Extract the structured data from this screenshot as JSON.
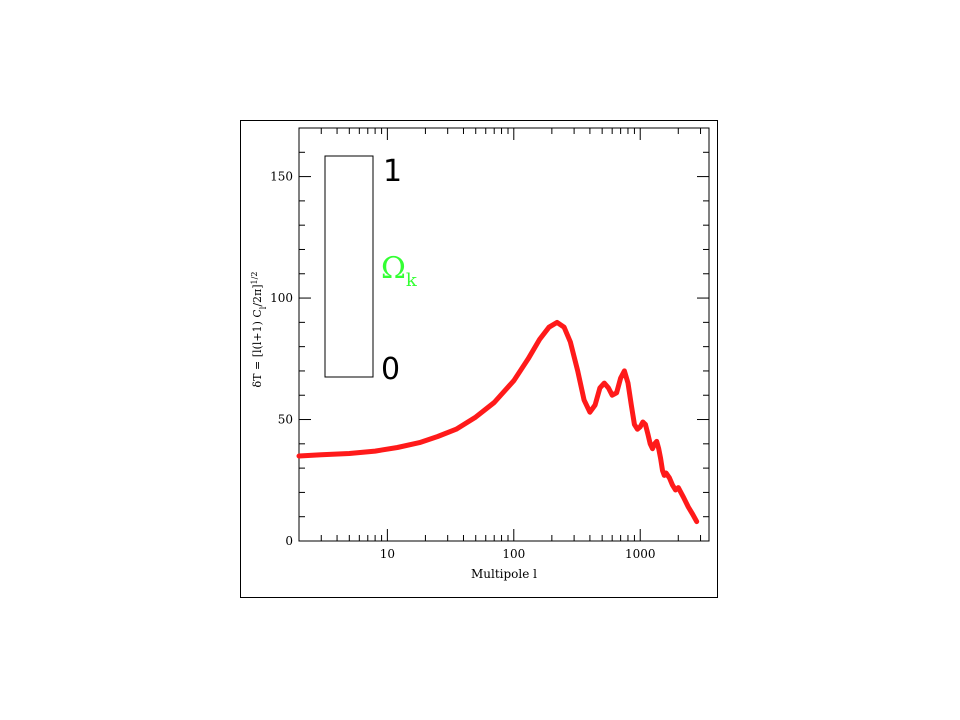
{
  "chart_data": {
    "type": "line",
    "title": "",
    "xlabel": "Multipole l",
    "ylabel": "δT = [l(l+1) C_l/2π]^1/2",
    "ylabel_parts": {
      "main": "δT = [l(l+1) C",
      "sub": "l",
      "mid": "/2π]",
      "sup": "1/2"
    },
    "xscale": "log",
    "xlim": [
      2,
      3500
    ],
    "ylim": [
      0,
      170
    ],
    "x_ticks": [
      10,
      100,
      1000
    ],
    "x_tick_labels": [
      "10",
      "100",
      "1000"
    ],
    "y_ticks": [
      0,
      50,
      100,
      150
    ],
    "y_tick_labels": [
      "0",
      "50",
      "100",
      "150"
    ],
    "line_color": "#ff1a1a",
    "series": [
      {
        "x": [
          2,
          3,
          5,
          8,
          12,
          18,
          25,
          35,
          50,
          70,
          100,
          130,
          160,
          190,
          220,
          250,
          280,
          320,
          360,
          400,
          440,
          480,
          520,
          560,
          600,
          650,
          700,
          750,
          800,
          850,
          900,
          950,
          1000,
          1050,
          1100,
          1150,
          1200,
          1250,
          1300,
          1350,
          1400,
          1450,
          1500,
          1550,
          1600,
          1700,
          1800,
          1900,
          2000,
          2200,
          2400,
          2600,
          2800
        ],
        "y": [
          35,
          35.5,
          36,
          37,
          38.5,
          40.5,
          43,
          46,
          51,
          57,
          66,
          75,
          83,
          88,
          90,
          88,
          82,
          70,
          58,
          53,
          56,
          63,
          65,
          63,
          60,
          61,
          67,
          70,
          65,
          56,
          48,
          46,
          47,
          49,
          48,
          44,
          40,
          38,
          40,
          41,
          38,
          34,
          29,
          27,
          28,
          26,
          23,
          21,
          22,
          18,
          14,
          11,
          8
        ]
      }
    ],
    "legend": {
      "top_label": "1",
      "bottom_label": "0",
      "parameter_symbol": "Ω",
      "parameter_subscript": "k",
      "parameter_color": "#33ff33"
    }
  }
}
